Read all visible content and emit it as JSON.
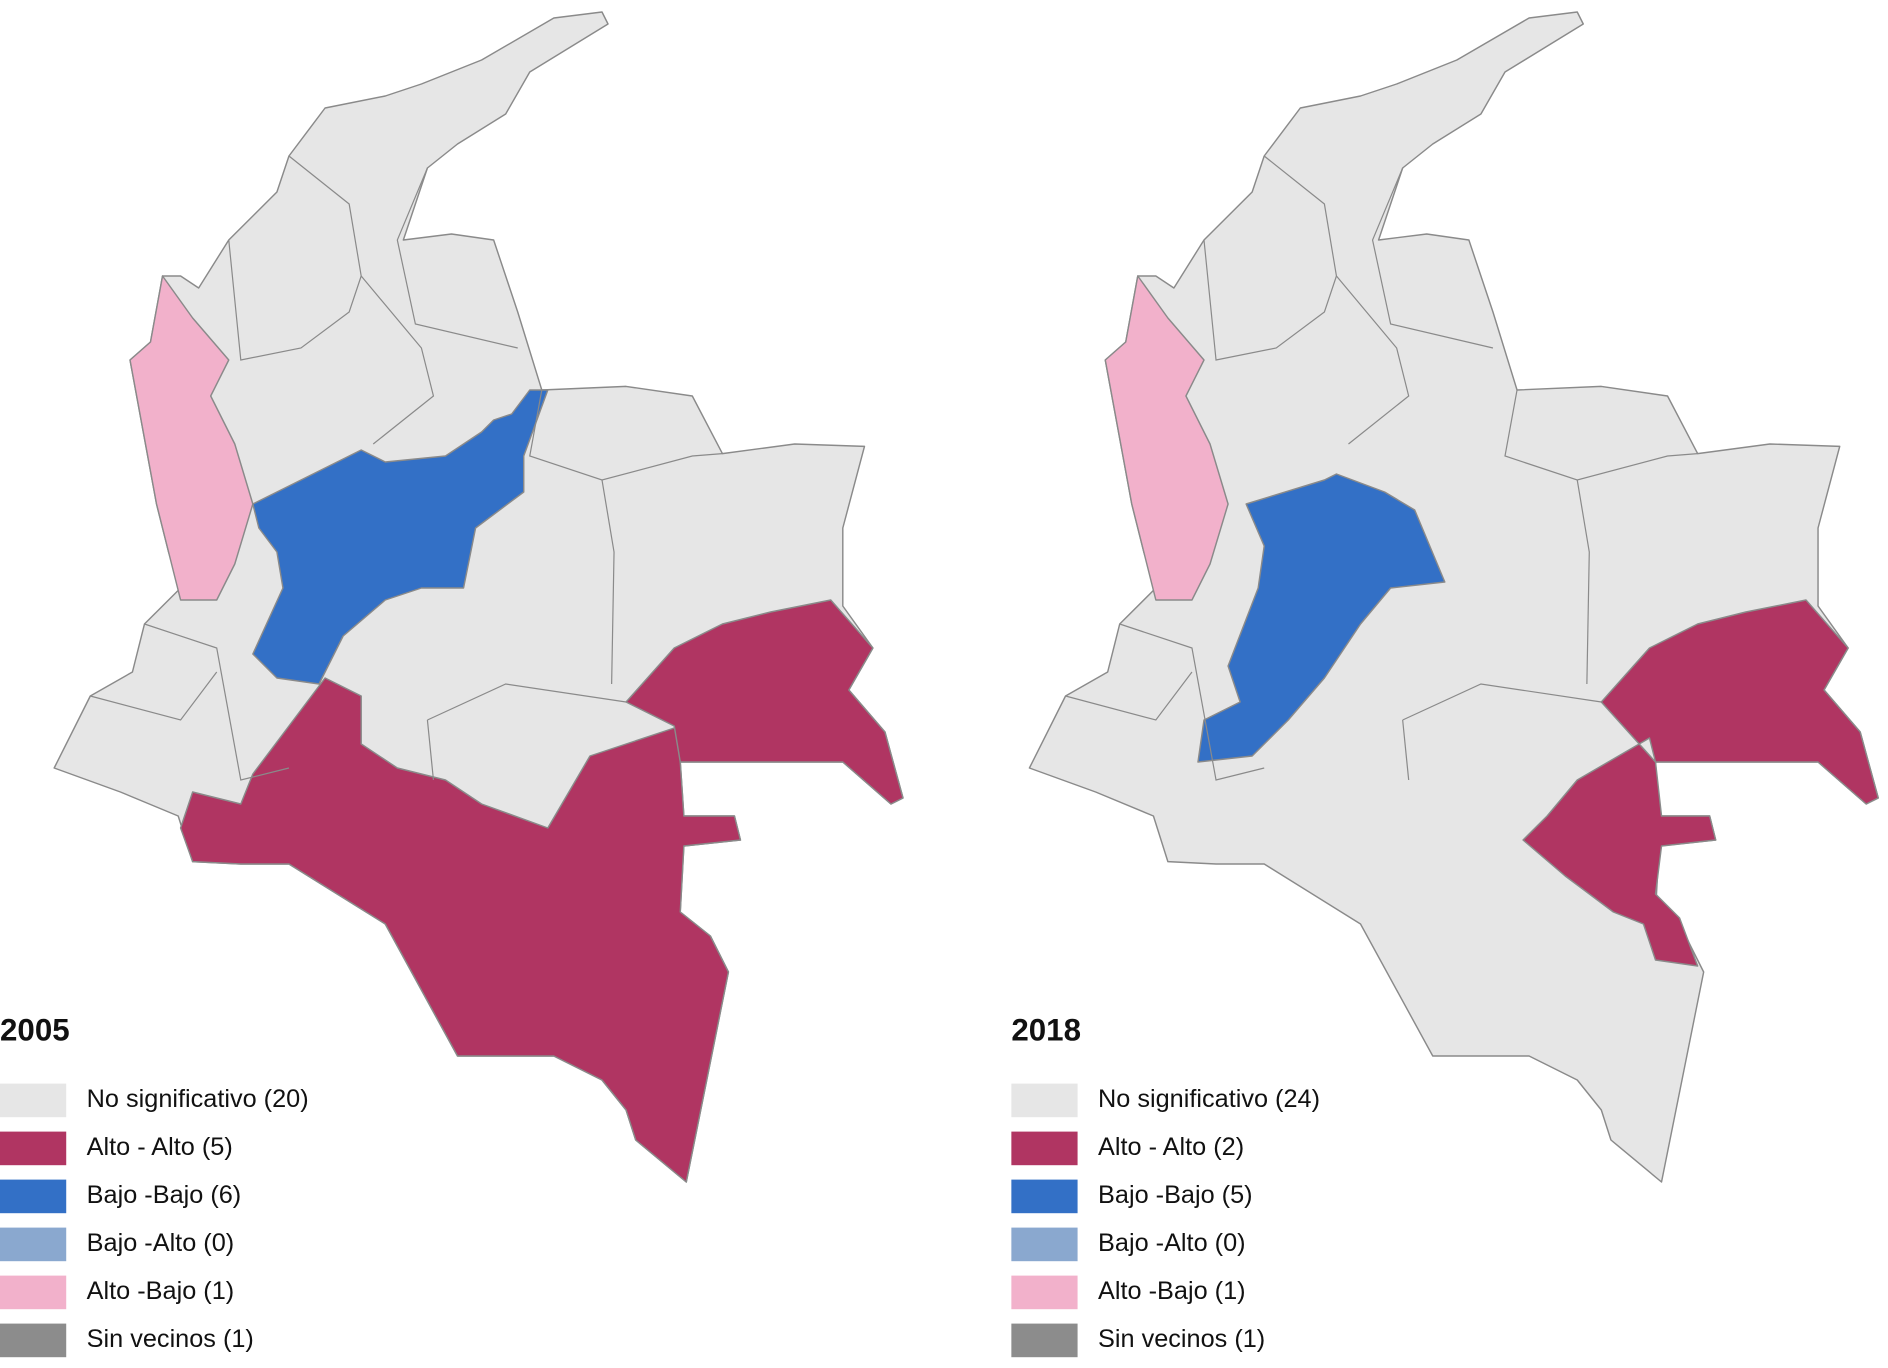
{
  "maps": [
    {
      "title": "2005",
      "legend": [
        {
          "label": "No significativo (20)",
          "color": "#e6e6e6"
        },
        {
          "label": "Alto - Alto (5)",
          "color": "#b03562"
        },
        {
          "label": "Bajo -Bajo (6)",
          "color": "#3370c6"
        },
        {
          "label": "Bajo -Alto (0)",
          "color": "#8aa8cf"
        },
        {
          "label": "Alto -Bajo (1)",
          "color": "#f2b1cb"
        },
        {
          "label": "Sin vecinos (1)",
          "color": "#8c8c8c"
        }
      ]
    },
    {
      "title": "2018",
      "legend": [
        {
          "label": "No significativo (24)",
          "color": "#e6e6e6"
        },
        {
          "label": "Alto - Alto (2)",
          "color": "#b03562"
        },
        {
          "label": "Bajo -Bajo (5)",
          "color": "#3370c6"
        },
        {
          "label": "Bajo -Alto (0)",
          "color": "#8aa8cf"
        },
        {
          "label": "Alto -Bajo (1)",
          "color": "#f2b1cb"
        },
        {
          "label": "Sin vecinos (1)",
          "color": "#8c8c8c"
        }
      ]
    }
  ]
}
